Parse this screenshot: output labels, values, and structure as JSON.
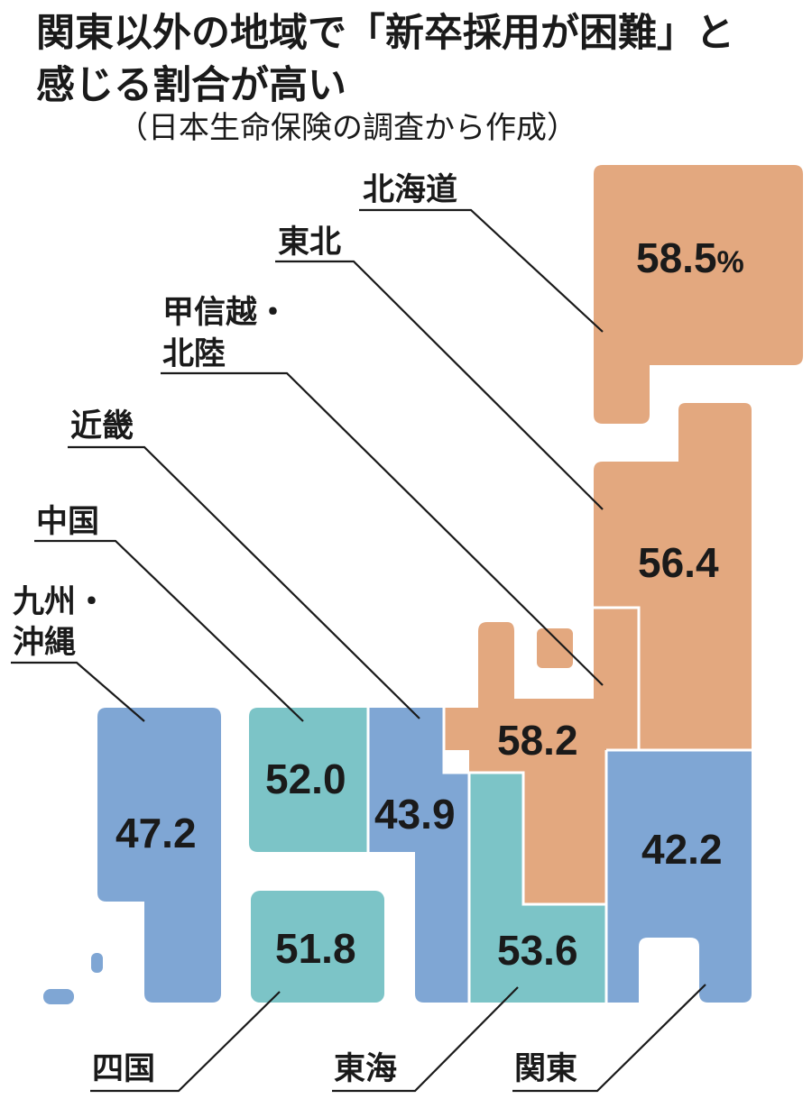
{
  "title": {
    "line1": "関東以外の地域で「新卒採用が困難」と",
    "line2": "感じる割合が高い"
  },
  "source": "（日本生命保険の調査から作成）",
  "unit": "%",
  "colors": {
    "high": "#e3a87f",
    "mid": "#7cc4c7",
    "low": "#7fa6d4"
  },
  "regions": [
    {
      "name": "北海道",
      "value": "58.5",
      "class": "high"
    },
    {
      "name": "東北",
      "value": "56.4",
      "class": "high"
    },
    {
      "name_line1": "甲信越・",
      "name_line2": "北陸",
      "value": "58.2",
      "class": "high"
    },
    {
      "name": "近畿",
      "value": "43.9",
      "class": "low"
    },
    {
      "name": "中国",
      "value": "52.0",
      "class": "mid"
    },
    {
      "name_line1": "九州・",
      "name_line2": "沖縄",
      "value": "47.2",
      "class": "low"
    },
    {
      "name": "四国",
      "value": "51.8",
      "class": "mid"
    },
    {
      "name": "東海",
      "value": "53.6",
      "class": "mid"
    },
    {
      "name": "関東",
      "value": "42.2",
      "class": "low"
    }
  ]
}
